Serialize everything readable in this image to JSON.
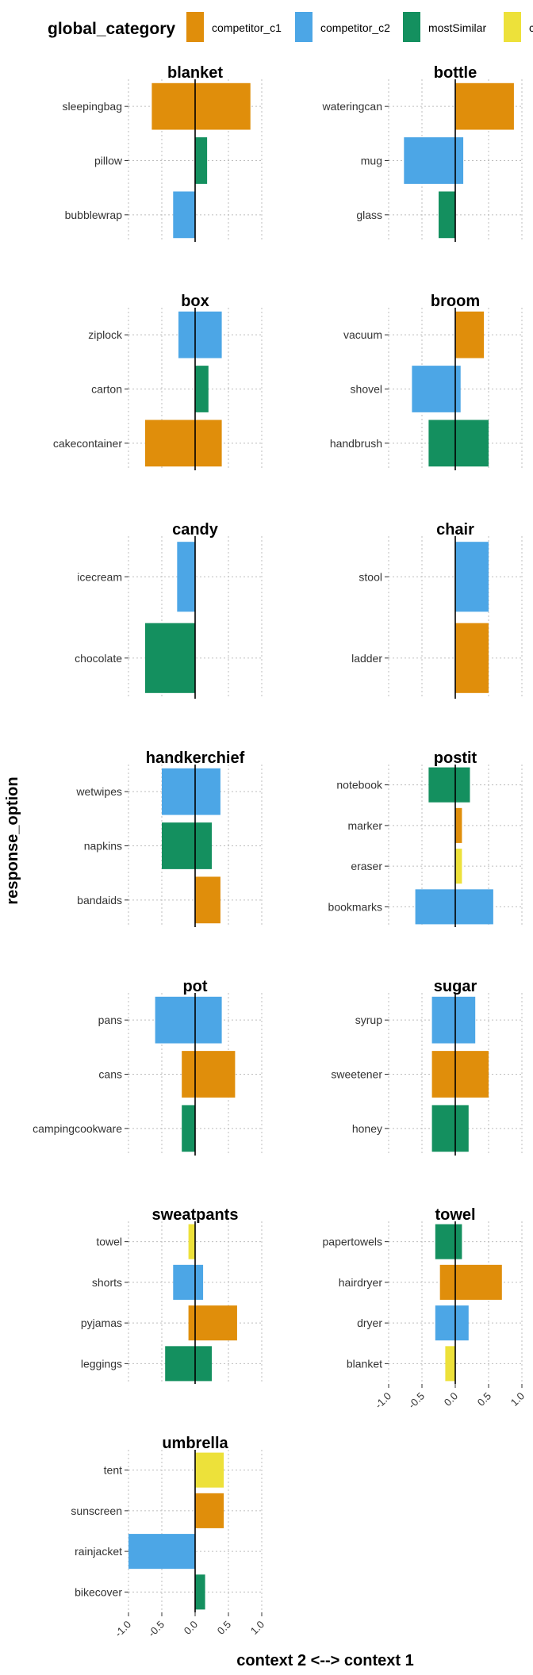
{
  "colors": {
    "competitor_c1": "#E08E0B",
    "competitor_c2": "#4CA6E6",
    "mostSimilar": "#14905F",
    "c": "#EDE13A"
  },
  "chart_data": {
    "type": "bar",
    "orientation": "horizontal",
    "facet_wrap": true,
    "xlim": [
      -1,
      1
    ],
    "xticks": [
      "-1.0",
      "-0.5",
      "0.0",
      "0.5",
      "1.0"
    ],
    "xlabel": "context 2 <--> context 1",
    "ylabel": "response_option",
    "grid": true,
    "legend": {
      "title": "global_category",
      "placement": "top",
      "entries": [
        "competitor_c1",
        "competitor_c2",
        "mostSimilar",
        "c"
      ]
    },
    "panels": [
      {
        "title": "blanket",
        "bars": [
          {
            "label": "sleepingbag",
            "x0": -0.65,
            "x1": 0.83,
            "cat": "competitor_c1"
          },
          {
            "label": "pillow",
            "x0": 0.0,
            "x1": 0.18,
            "cat": "mostSimilar"
          },
          {
            "label": "bubblewrap",
            "x0": -0.33,
            "x1": 0.0,
            "cat": "competitor_c2"
          }
        ]
      },
      {
        "title": "bottle",
        "bars": [
          {
            "label": "wateringcan",
            "x0": 0.0,
            "x1": 0.88,
            "cat": "competitor_c1"
          },
          {
            "label": "mug",
            "x0": -0.77,
            "x1": 0.12,
            "cat": "competitor_c2"
          },
          {
            "label": "glass",
            "x0": -0.25,
            "x1": 0.0,
            "cat": "mostSimilar"
          }
        ]
      },
      {
        "title": "box",
        "bars": [
          {
            "label": "ziplock",
            "x0": -0.25,
            "x1": 0.4,
            "cat": "competitor_c2"
          },
          {
            "label": "carton",
            "x0": 0.0,
            "x1": 0.2,
            "cat": "mostSimilar"
          },
          {
            "label": "cakecontainer",
            "x0": -0.75,
            "x1": 0.4,
            "cat": "competitor_c1"
          }
        ]
      },
      {
        "title": "broom",
        "bars": [
          {
            "label": "vacuum",
            "x0": 0.0,
            "x1": 0.43,
            "cat": "competitor_c1"
          },
          {
            "label": "shovel",
            "x0": -0.65,
            "x1": 0.08,
            "cat": "competitor_c2"
          },
          {
            "label": "handbrush",
            "x0": -0.4,
            "x1": 0.5,
            "cat": "mostSimilar"
          }
        ]
      },
      {
        "title": "candy",
        "bars": [
          {
            "label": "icecream",
            "x0": -0.27,
            "x1": 0.0,
            "cat": "competitor_c2"
          },
          {
            "label": "chocolate",
            "x0": -0.75,
            "x1": 0.0,
            "cat": "mostSimilar"
          }
        ]
      },
      {
        "title": "chair",
        "bars": [
          {
            "label": "stool",
            "x0": 0.0,
            "x1": 0.5,
            "cat": "competitor_c2"
          },
          {
            "label": "ladder",
            "x0": 0.0,
            "x1": 0.5,
            "cat": "competitor_c1"
          }
        ]
      },
      {
        "title": "handkerchief",
        "bars": [
          {
            "label": "wetwipes",
            "x0": -0.5,
            "x1": 0.38,
            "cat": "competitor_c2"
          },
          {
            "label": "napkins",
            "x0": -0.5,
            "x1": 0.25,
            "cat": "mostSimilar"
          },
          {
            "label": "bandaids",
            "x0": 0.0,
            "x1": 0.38,
            "cat": "competitor_c1"
          }
        ]
      },
      {
        "title": "postit",
        "bars": [
          {
            "label": "notebook",
            "x0": -0.4,
            "x1": 0.22,
            "cat": "mostSimilar"
          },
          {
            "label": "marker",
            "x0": 0.0,
            "x1": 0.1,
            "cat": "competitor_c1"
          },
          {
            "label": "eraser",
            "x0": 0.0,
            "x1": 0.1,
            "cat": "c"
          },
          {
            "label": "bookmarks",
            "x0": -0.6,
            "x1": 0.57,
            "cat": "competitor_c2"
          }
        ]
      },
      {
        "title": "pot",
        "bars": [
          {
            "label": "pans",
            "x0": -0.6,
            "x1": 0.4,
            "cat": "competitor_c2"
          },
          {
            "label": "cans",
            "x0": -0.2,
            "x1": 0.6,
            "cat": "competitor_c1"
          },
          {
            "label": "campingcookware",
            "x0": -0.2,
            "x1": 0.0,
            "cat": "mostSimilar"
          }
        ]
      },
      {
        "title": "sugar",
        "bars": [
          {
            "label": "syrup",
            "x0": -0.35,
            "x1": 0.3,
            "cat": "competitor_c2"
          },
          {
            "label": "sweetener",
            "x0": -0.35,
            "x1": 0.5,
            "cat": "competitor_c1"
          },
          {
            "label": "honey",
            "x0": -0.35,
            "x1": 0.2,
            "cat": "mostSimilar"
          }
        ]
      },
      {
        "title": "sweatpants",
        "bars": [
          {
            "label": "towel",
            "x0": -0.1,
            "x1": 0.0,
            "cat": "c"
          },
          {
            "label": "shorts",
            "x0": -0.33,
            "x1": 0.12,
            "cat": "competitor_c2"
          },
          {
            "label": "pyjamas",
            "x0": -0.1,
            "x1": 0.63,
            "cat": "competitor_c1"
          },
          {
            "label": "leggings",
            "x0": -0.45,
            "x1": 0.25,
            "cat": "mostSimilar"
          }
        ]
      },
      {
        "title": "towel",
        "bars": [
          {
            "label": "papertowels",
            "x0": -0.3,
            "x1": 0.1,
            "cat": "mostSimilar"
          },
          {
            "label": "hairdryer",
            "x0": -0.23,
            "x1": 0.7,
            "cat": "competitor_c1"
          },
          {
            "label": "dryer",
            "x0": -0.3,
            "x1": 0.2,
            "cat": "competitor_c2"
          },
          {
            "label": "blanket",
            "x0": -0.15,
            "x1": 0.0,
            "cat": "c"
          }
        ]
      },
      {
        "title": "umbrella",
        "bars": [
          {
            "label": "tent",
            "x0": 0.0,
            "x1": 0.43,
            "cat": "c"
          },
          {
            "label": "sunscreen",
            "x0": 0.0,
            "x1": 0.43,
            "cat": "competitor_c1"
          },
          {
            "label": "rainjacket",
            "x0": -1.0,
            "x1": 0.0,
            "cat": "competitor_c2"
          },
          {
            "label": "bikecover",
            "x0": 0.0,
            "x1": 0.15,
            "cat": "mostSimilar"
          }
        ]
      }
    ]
  }
}
